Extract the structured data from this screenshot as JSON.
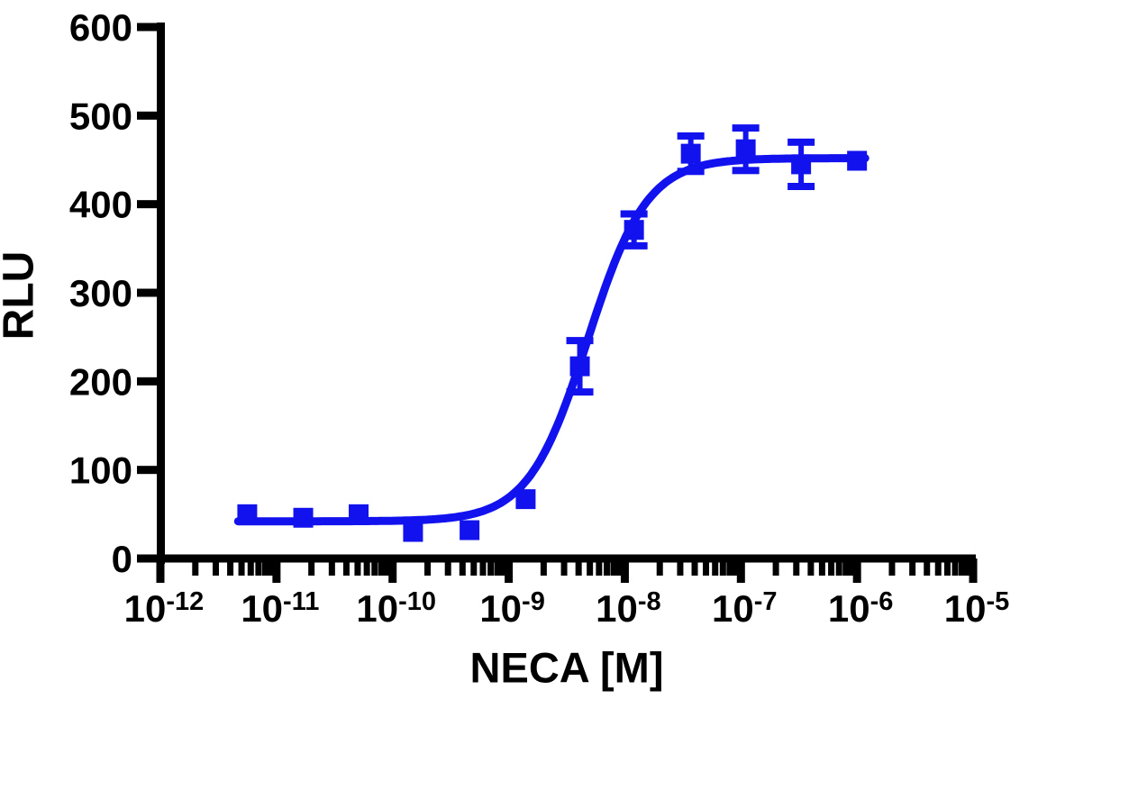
{
  "page": {
    "background": "#FFFFFF"
  },
  "chart_data": {
    "type": "scatter",
    "title": "",
    "xlabel": "NECA [M]",
    "ylabel": "RLU",
    "x_scale": "log10",
    "xlim_log10": [
      -12,
      -5
    ],
    "ylim": [
      0,
      600
    ],
    "y_ticks": [
      0,
      100,
      200,
      300,
      400,
      500,
      600
    ],
    "x_major_tick_exponents": [
      -12,
      -11,
      -10,
      -9,
      -8,
      -7,
      -6,
      -5
    ],
    "x_minor_ticks": "log subdivisions 2-9 within each decade",
    "grid": false,
    "legend": "none",
    "axis_color": "#000000",
    "series_color": "#1212EE",
    "marker": "filled-square",
    "series": [
      {
        "name": "NECA",
        "points": [
          {
            "conc_M": 5.6e-12,
            "rlu": 50,
            "err_rlu": 0
          },
          {
            "conc_M": 1.7e-11,
            "rlu": 46,
            "err_rlu": 0
          },
          {
            "conc_M": 5.1e-11,
            "rlu": 50,
            "err_rlu": 0
          },
          {
            "conc_M": 1.5e-10,
            "rlu": 30,
            "err_rlu": 0
          },
          {
            "conc_M": 4.6e-10,
            "rlu": 32,
            "err_rlu": 0
          },
          {
            "conc_M": 1.4e-09,
            "rlu": 67,
            "err_rlu": 0
          },
          {
            "conc_M": 4.1e-09,
            "rlu": 217,
            "err_rlu": 29
          },
          {
            "conc_M": 1.2e-08,
            "rlu": 371,
            "err_rlu": 18
          },
          {
            "conc_M": 3.7e-08,
            "rlu": 457,
            "err_rlu": 20
          },
          {
            "conc_M": 1.1e-07,
            "rlu": 462,
            "err_rlu": 24
          },
          {
            "conc_M": 3.3e-07,
            "rlu": 445,
            "err_rlu": 25
          },
          {
            "conc_M": 1e-06,
            "rlu": 449,
            "err_rlu": 0
          }
        ]
      }
    ],
    "fit_curve": {
      "model": "4PL sigmoid",
      "bottom": 42,
      "top": 452,
      "log10_ec50": -8.32,
      "hill_slope": 1.7
    }
  }
}
